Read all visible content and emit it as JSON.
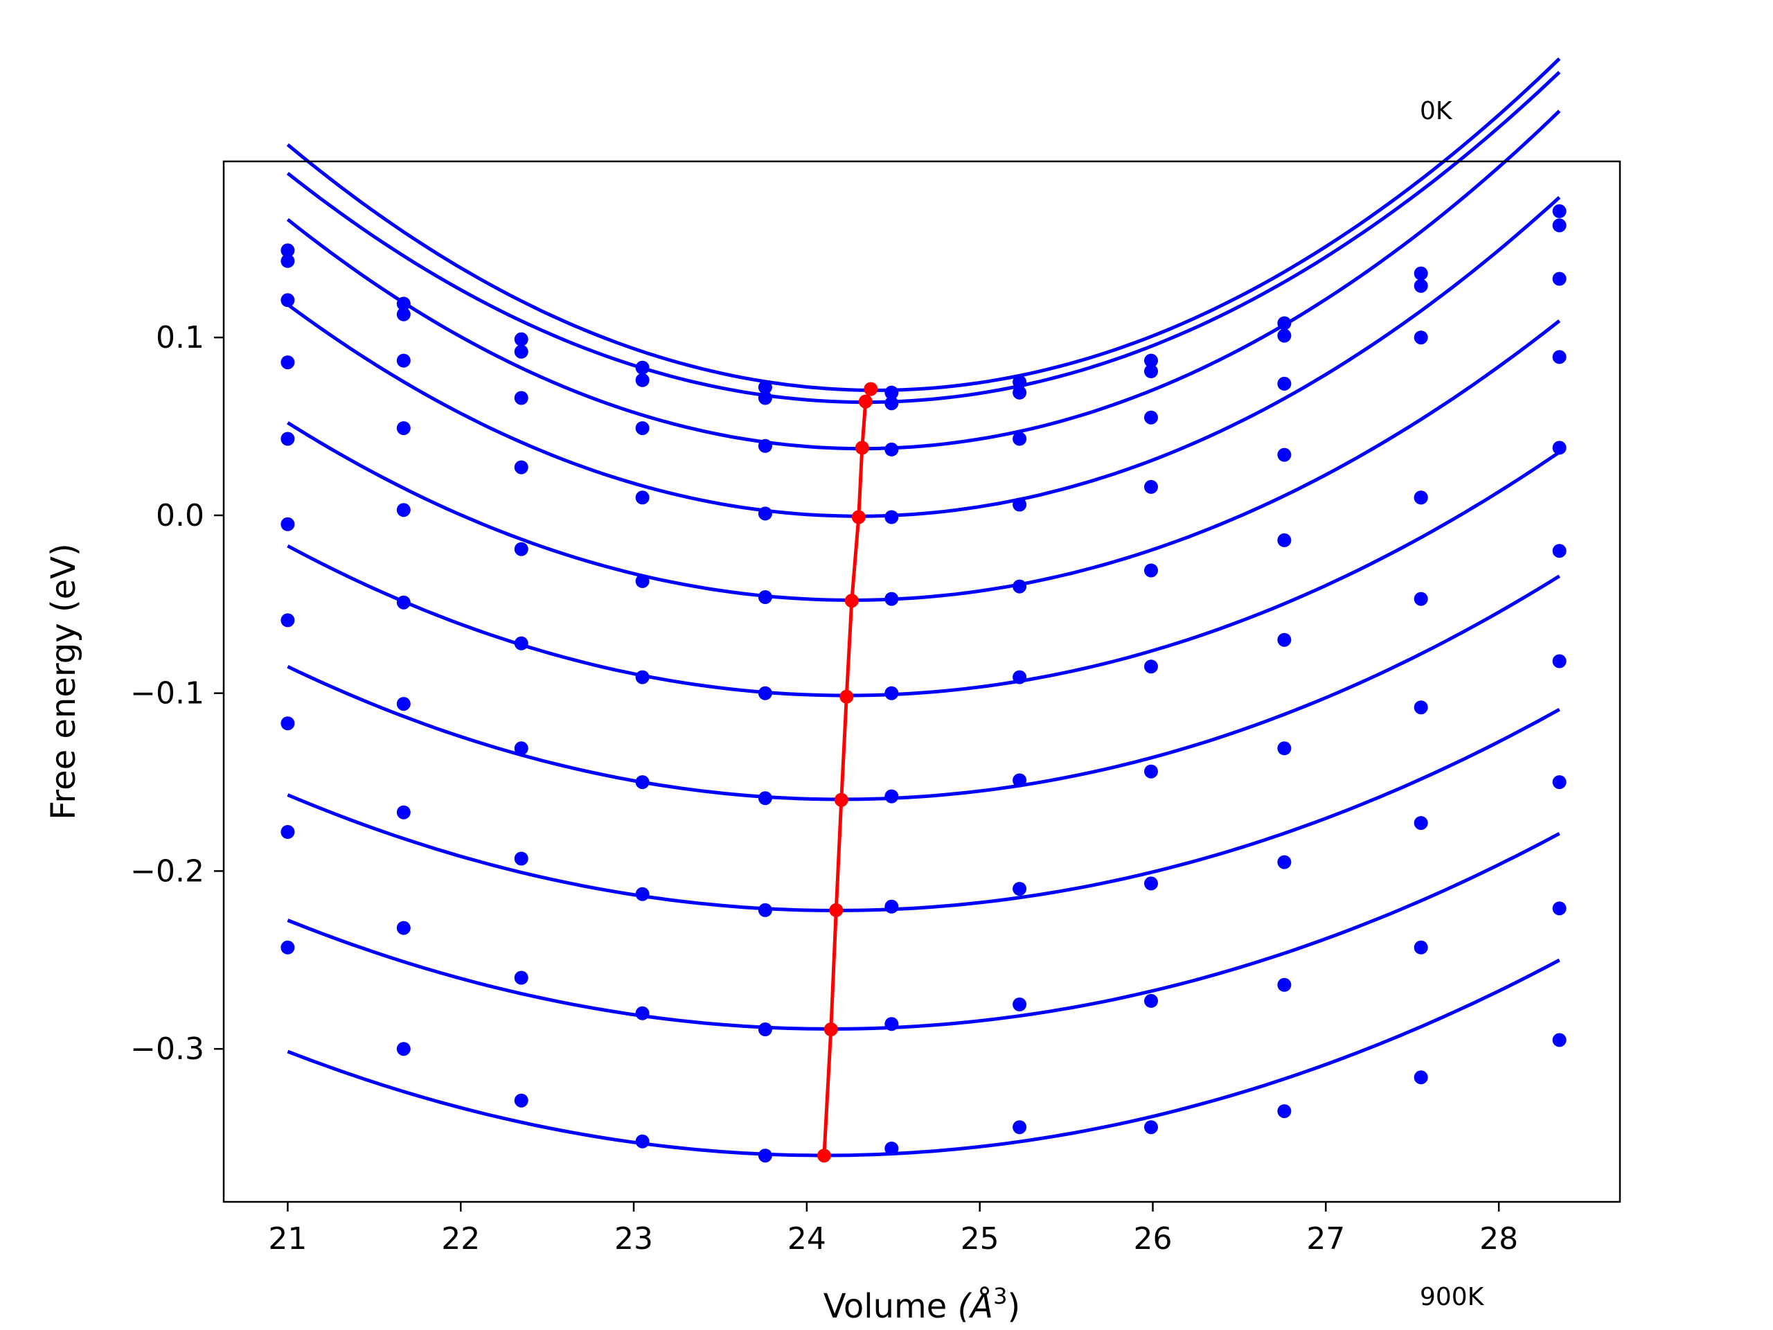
{
  "chart_data": {
    "type": "line",
    "title": "",
    "xlabel": "Volume",
    "xlabel_unit": "(Å",
    "xlabel_unit_exp": "3",
    "xlabel_unit_close": ")",
    "ylabel": "Free energy (eV)",
    "xlim": [
      20.63,
      28.7
    ],
    "ylim": [
      -0.386,
      0.199
    ],
    "grid": false,
    "legend": "none",
    "annotations": {
      "top": "0K",
      "bottom": "900K"
    },
    "x_ticks": [
      21,
      22,
      23,
      24,
      25,
      26,
      27,
      28
    ],
    "x_tick_labels": [
      "21",
      "22",
      "23",
      "24",
      "25",
      "26",
      "27",
      "28"
    ],
    "y_ticks": [
      0.1,
      0.0,
      -0.1,
      -0.2,
      -0.3
    ],
    "y_tick_labels": [
      "0.1",
      "0.0",
      "−0.1",
      "−0.2",
      "−0.3"
    ],
    "x": [
      21.0,
      21.67,
      22.35,
      23.05,
      23.76,
      24.49,
      25.23,
      25.99,
      26.76,
      27.55,
      28.35
    ],
    "curve_color": "#0000ff",
    "minimum_line_color": "#ff0000",
    "series": [
      {
        "points": [
          0.149,
          0.119,
          0.099,
          0.083,
          0.072,
          0.069,
          0.075,
          0.087,
          0.108,
          0.136,
          0.171
        ],
        "fit": {
          "a": 0.01195,
          "v0": 24.4,
          "f0": 0.0703
        }
      },
      {
        "points": [
          0.143,
          0.113,
          0.092,
          0.076,
          0.066,
          0.063,
          0.069,
          0.081,
          0.101,
          0.129,
          0.163
        ],
        "fit": {
          "a": 0.01154,
          "v0": 24.34,
          "f0": 0.0636
        }
      },
      {
        "points": [
          0.121,
          0.087,
          0.066,
          0.049,
          0.039,
          0.037,
          0.043,
          0.055,
          0.074,
          0.1,
          0.133
        ],
        "fit": {
          "a": 0.01169,
          "v0": 24.32,
          "f0": 0.0375
        }
      },
      {
        "points": [
          0.086,
          0.049,
          0.027,
          0.01,
          0.001,
          -0.001,
          0.006,
          0.016,
          0.034,
          0.01,
          0.089
        ],
        "fit": {
          "a": 0.01093,
          "v0": 24.3,
          "f0": -0.0005
        }
      },
      {
        "points": [
          0.043,
          0.003,
          -0.019,
          -0.037,
          -0.046,
          -0.047,
          -0.04,
          -0.031,
          -0.014,
          0.01,
          0.038
        ],
        "fit": {
          "a": 0.00939,
          "v0": 24.26,
          "f0": -0.0477
        }
      },
      {
        "points": [
          -0.005,
          -0.049,
          -0.072,
          -0.091,
          -0.1,
          -0.1,
          -0.091,
          -0.085,
          -0.07,
          -0.047,
          -0.02
        ],
        "fit": {
          "a": 0.00806,
          "v0": 24.23,
          "f0": -0.1013
        }
      },
      {
        "points": [
          -0.059,
          -0.106,
          -0.131,
          -0.15,
          -0.159,
          -0.158,
          -0.149,
          -0.144,
          -0.131,
          -0.108,
          -0.082
        ],
        "fit": {
          "a": 0.00729,
          "v0": 24.2,
          "f0": -0.1597
        }
      },
      {
        "points": [
          -0.117,
          -0.167,
          -0.193,
          -0.213,
          -0.222,
          -0.22,
          -0.21,
          -0.207,
          -0.195,
          -0.173,
          -0.15
        ],
        "fit": {
          "a": 0.00647,
          "v0": 24.17,
          "f0": -0.2222
        }
      },
      {
        "points": [
          -0.178,
          -0.232,
          -0.26,
          -0.28,
          -0.289,
          -0.286,
          -0.275,
          -0.273,
          -0.264,
          -0.243,
          -0.221
        ],
        "fit": {
          "a": 0.0062,
          "v0": 24.14,
          "f0": -0.2888
        }
      },
      {
        "points": [
          -0.243,
          -0.3,
          -0.329,
          -0.352,
          -0.36,
          -0.356,
          -0.344,
          -0.344,
          -0.335,
          -0.316,
          -0.295
        ],
        "fit": {
          "a": 0.00608,
          "v0": 24.1,
          "f0": -0.3599
        }
      }
    ],
    "minima": {
      "x": [
        24.37,
        24.34,
        24.32,
        24.3,
        24.26,
        24.23,
        24.2,
        24.17,
        24.14,
        24.1
      ],
      "y": [
        0.071,
        0.064,
        0.038,
        -0.001,
        -0.048,
        -0.102,
        -0.16,
        -0.222,
        -0.289,
        -0.36
      ]
    }
  }
}
